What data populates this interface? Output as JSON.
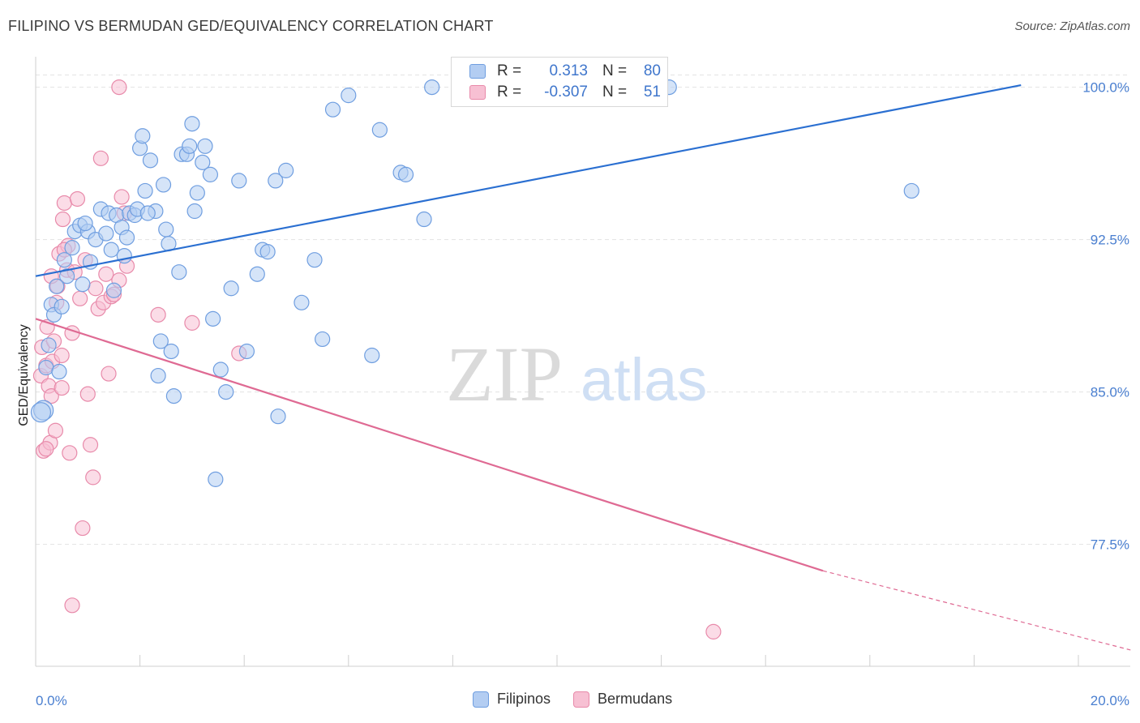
{
  "header": {
    "title": "FILIPINO VS BERMUDAN GED/EQUIVALENCY CORRELATION CHART",
    "source": "Source: ZipAtlas.com"
  },
  "watermark": {
    "zip": "ZIP",
    "atlas": "atlas"
  },
  "legend_top": {
    "rows": [
      {
        "r_label": "R =",
        "r_value": "0.313",
        "n_label": "N =",
        "n_value": "80"
      },
      {
        "r_label": "R =",
        "r_value": "-0.307",
        "n_label": "N =",
        "n_value": "51"
      }
    ]
  },
  "legend_bottom": {
    "items": [
      "Filipinos",
      "Bermudans"
    ]
  },
  "colors": {
    "filipinos_fill": "#b3cdf2",
    "filipinos_stroke": "#6f9ee0",
    "filipinos_line": "#2a6fd1",
    "bermudans_fill": "#f7c0d3",
    "bermudans_stroke": "#e88aaa",
    "bermudans_line": "#df6a93",
    "tick_text": "#4a7fd0",
    "grid": "#e3e3e3"
  },
  "chart_data": {
    "type": "scatter",
    "title": "FILIPINO VS BERMUDAN GED/EQUIVALENCY CORRELATION CHART",
    "xlabel": "",
    "ylabel": "GED/Equivalency",
    "xlim": [
      0,
      21
    ],
    "ylim": [
      71.5,
      101.5
    ],
    "x_tick_labels": [
      {
        "value": 0,
        "label": "0.0%"
      },
      {
        "value": 20,
        "label": "20.0%"
      }
    ],
    "y_tick_labels": [
      {
        "value": 100,
        "label": "100.0%"
      },
      {
        "value": 92.5,
        "label": "92.5%"
      },
      {
        "value": 85,
        "label": "85.0%"
      },
      {
        "value": 77.5,
        "label": "77.5%"
      }
    ],
    "x_minor_ticks": [
      0,
      2,
      4,
      6,
      8,
      10,
      12,
      14,
      16,
      18,
      20
    ],
    "grid": true,
    "legend_position": "top-center",
    "series": [
      {
        "name": "Filipinos",
        "r": 0.313,
        "n": 80,
        "trend": {
          "x": [
            0,
            18.9
          ],
          "y": [
            90.7,
            100.1
          ]
        },
        "points": [
          [
            0.15,
            84.1
          ],
          [
            0.2,
            86.2
          ],
          [
            0.25,
            87.3
          ],
          [
            0.3,
            89.3
          ],
          [
            0.35,
            88.8
          ],
          [
            0.4,
            90.2
          ],
          [
            0.5,
            89.2
          ],
          [
            0.55,
            91.5
          ],
          [
            0.6,
            90.7
          ],
          [
            0.7,
            92.1
          ],
          [
            0.75,
            92.9
          ],
          [
            0.85,
            93.2
          ],
          [
            0.9,
            90.3
          ],
          [
            1.0,
            92.9
          ],
          [
            1.05,
            91.4
          ],
          [
            1.15,
            92.5
          ],
          [
            1.25,
            94.0
          ],
          [
            1.35,
            92.8
          ],
          [
            1.4,
            93.8
          ],
          [
            1.45,
            92.0
          ],
          [
            1.5,
            90.0
          ],
          [
            1.55,
            93.7
          ],
          [
            1.65,
            93.1
          ],
          [
            1.7,
            91.7
          ],
          [
            1.8,
            93.8
          ],
          [
            1.9,
            93.7
          ],
          [
            1.95,
            94.0
          ],
          [
            2.0,
            97.0
          ],
          [
            2.05,
            97.6
          ],
          [
            2.1,
            94.9
          ],
          [
            2.2,
            96.4
          ],
          [
            2.3,
            93.9
          ],
          [
            2.35,
            85.8
          ],
          [
            2.4,
            87.5
          ],
          [
            2.45,
            95.2
          ],
          [
            2.5,
            93.0
          ],
          [
            2.55,
            92.3
          ],
          [
            2.6,
            87.0
          ],
          [
            2.65,
            84.8
          ],
          [
            2.75,
            90.9
          ],
          [
            2.8,
            96.7
          ],
          [
            2.9,
            96.7
          ],
          [
            2.95,
            97.1
          ],
          [
            3.0,
            98.2
          ],
          [
            3.05,
            93.9
          ],
          [
            3.1,
            94.8
          ],
          [
            3.2,
            96.3
          ],
          [
            3.25,
            97.1
          ],
          [
            3.35,
            95.7
          ],
          [
            3.4,
            88.6
          ],
          [
            3.45,
            80.7
          ],
          [
            3.55,
            86.1
          ],
          [
            3.65,
            85.0
          ],
          [
            3.75,
            90.1
          ],
          [
            3.9,
            95.4
          ],
          [
            4.05,
            87.0
          ],
          [
            4.25,
            90.8
          ],
          [
            4.35,
            92.0
          ],
          [
            4.45,
            91.9
          ],
          [
            4.6,
            95.4
          ],
          [
            4.65,
            83.8
          ],
          [
            4.8,
            95.9
          ],
          [
            5.1,
            89.4
          ],
          [
            5.35,
            91.5
          ],
          [
            5.5,
            87.6
          ],
          [
            5.7,
            98.9
          ],
          [
            6.0,
            99.6
          ],
          [
            6.45,
            86.8
          ],
          [
            6.6,
            97.9
          ],
          [
            7.0,
            95.8
          ],
          [
            7.1,
            95.7
          ],
          [
            7.45,
            93.5
          ],
          [
            7.6,
            100.0
          ],
          [
            0.1,
            84.0
          ],
          [
            0.45,
            86.0
          ],
          [
            0.95,
            93.3
          ],
          [
            1.75,
            92.6
          ],
          [
            2.15,
            93.8
          ],
          [
            12.15,
            100.0
          ],
          [
            16.8,
            94.9
          ]
        ]
      },
      {
        "name": "Bermudans",
        "r": -0.307,
        "n": 51,
        "trend": {
          "x": [
            0,
            15.1
          ],
          "y": [
            88.6,
            76.2
          ]
        },
        "trend_dashed": {
          "x": [
            15.1,
            21.0
          ],
          "y": [
            76.2,
            72.3
          ]
        },
        "points": [
          [
            0.1,
            85.8
          ],
          [
            0.12,
            87.2
          ],
          [
            0.15,
            82.1
          ],
          [
            0.2,
            86.3
          ],
          [
            0.22,
            88.2
          ],
          [
            0.25,
            85.3
          ],
          [
            0.28,
            82.5
          ],
          [
            0.3,
            84.8
          ],
          [
            0.32,
            86.5
          ],
          [
            0.35,
            87.5
          ],
          [
            0.4,
            89.4
          ],
          [
            0.42,
            90.2
          ],
          [
            0.45,
            91.8
          ],
          [
            0.5,
            86.8
          ],
          [
            0.52,
            93.5
          ],
          [
            0.55,
            94.3
          ],
          [
            0.6,
            91.0
          ],
          [
            0.62,
            92.2
          ],
          [
            0.65,
            82.0
          ],
          [
            0.7,
            87.9
          ],
          [
            0.75,
            90.9
          ],
          [
            0.8,
            94.5
          ],
          [
            0.85,
            89.6
          ],
          [
            0.9,
            78.3
          ],
          [
            0.95,
            91.5
          ],
          [
            1.0,
            84.9
          ],
          [
            1.05,
            82.4
          ],
          [
            1.1,
            80.8
          ],
          [
            1.15,
            90.1
          ],
          [
            1.2,
            89.1
          ],
          [
            1.25,
            96.5
          ],
          [
            1.3,
            89.4
          ],
          [
            1.35,
            90.8
          ],
          [
            1.4,
            85.9
          ],
          [
            1.45,
            89.7
          ],
          [
            1.5,
            89.8
          ],
          [
            1.6,
            90.5
          ],
          [
            1.65,
            94.6
          ],
          [
            1.7,
            93.8
          ],
          [
            1.75,
            91.2
          ],
          [
            1.6,
            100.0
          ],
          [
            0.3,
            90.7
          ],
          [
            0.5,
            85.2
          ],
          [
            0.7,
            74.5
          ],
          [
            0.55,
            92.0
          ],
          [
            0.38,
            83.1
          ],
          [
            2.35,
            88.8
          ],
          [
            3.0,
            88.4
          ],
          [
            3.9,
            86.9
          ],
          [
            13.0,
            73.2
          ],
          [
            0.2,
            82.2
          ]
        ]
      }
    ]
  }
}
